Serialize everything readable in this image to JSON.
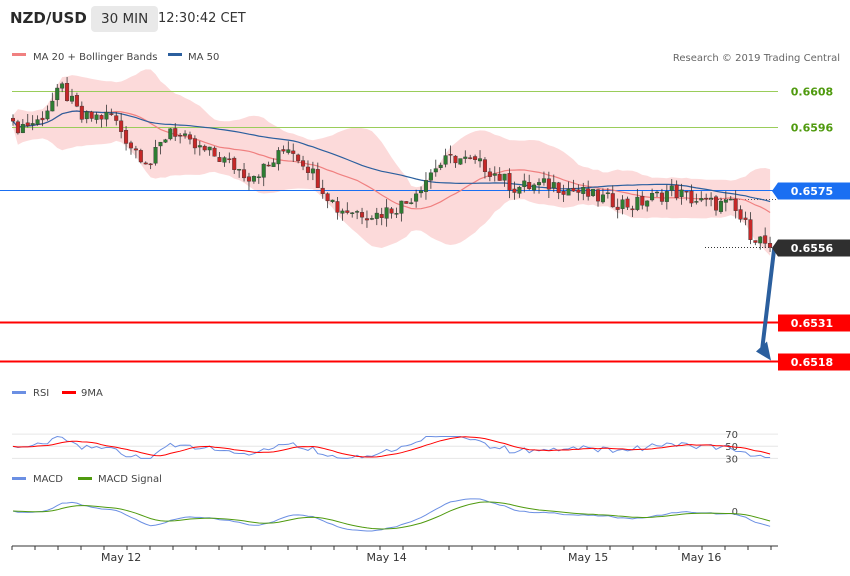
{
  "header": {
    "pair": "NZD/USD",
    "timeframe": "30 MIN",
    "time": "12:30:42 CET"
  },
  "research_label": "Research © 2019 Trading Central",
  "colors": {
    "candle_up": "#2e7d32",
    "candle_down": "#c62828",
    "band_fill": "#fbd3d3",
    "ma20": "#f08080",
    "ma50": "#2b5f9e",
    "resistance": "#9acd5a",
    "support": "#ff0000",
    "current_marker": "#2f2f2f",
    "ma50_marker": "#1a6ff2",
    "arrow": "#2b5f9e",
    "rsi": "#6b8fe3",
    "rsi_ma": "#ff0000",
    "macd": "#6b8fe3",
    "macd_signal": "#4f9a0e"
  },
  "chart_data": [
    {
      "type": "candlestick",
      "title": "NZD/USD 30 MIN",
      "legend": [
        {
          "name": "MA 20 + Bollinger Bands",
          "color": "#f08080"
        },
        {
          "name": "MA 50",
          "color": "#2b5f9e"
        }
      ],
      "legend_position": "top-left",
      "ylim": [
        0.65125,
        0.66135
      ],
      "levels": [
        {
          "value": "0.6608",
          "price": 0.6608,
          "kind": "resistance"
        },
        {
          "value": "0.6596",
          "price": 0.6596,
          "kind": "resistance"
        },
        {
          "value": "0.6575",
          "price": 0.6575,
          "kind": "ma50"
        },
        {
          "value": "0.6556",
          "price": 0.6556,
          "kind": "current"
        },
        {
          "value": "0.6531",
          "price": 0.6531,
          "kind": "support"
        },
        {
          "value": "0.6518",
          "price": 0.6518,
          "kind": "support"
        }
      ],
      "forecast_arrow": {
        "from": 0.6556,
        "to": 0.6518
      },
      "x_ticks": [
        "May 12",
        "May 14",
        "May 15",
        "May 16"
      ],
      "grid": false
    },
    {
      "type": "line",
      "legend": [
        {
          "name": "RSI",
          "color": "#6b8fe3"
        },
        {
          "name": "9MA",
          "color": "#ff0000"
        }
      ],
      "ylim": [
        24,
        80
      ],
      "y_ticks": [
        "70",
        "50",
        "30"
      ]
    },
    {
      "type": "line",
      "legend": [
        {
          "name": "MACD",
          "color": "#6b8fe3"
        },
        {
          "name": "MACD Signal",
          "color": "#4f9a0e"
        }
      ],
      "y_ticks": [
        "0"
      ]
    }
  ]
}
